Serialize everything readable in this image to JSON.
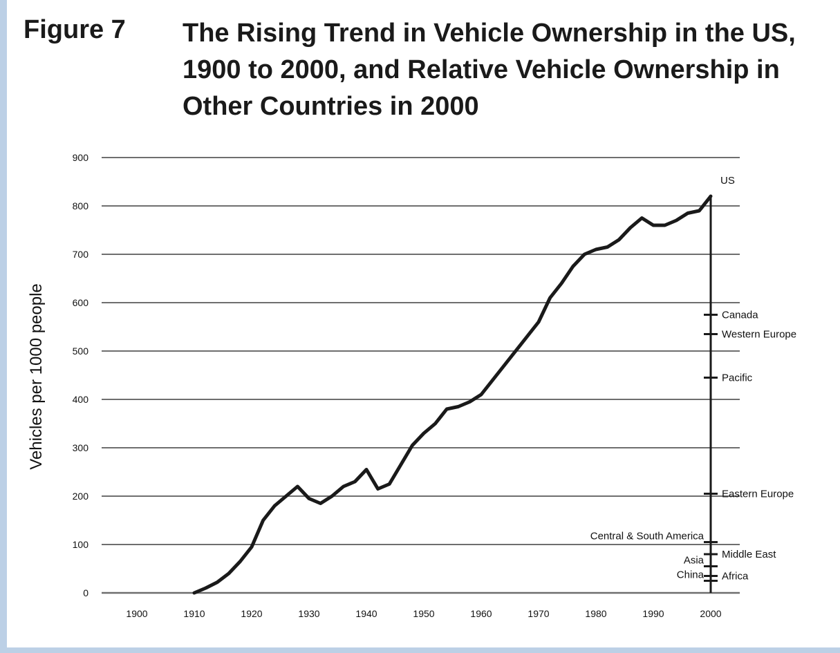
{
  "figure": {
    "label": "Figure 7",
    "title": "The Rising Trend in Vehicle Ownership in the US, 1900 to 2000, and Relative Vehicle Ownership in Other Countries in 2000"
  },
  "chart_data": {
    "type": "line",
    "title": "The Rising Trend in Vehicle Ownership in the US, 1900 to 2000, and Relative Vehicle Ownership in Other Countries in 2000",
    "ylabel": "Vehicles per 1000 people",
    "xlabel": "",
    "xlim": [
      1895,
      2005
    ],
    "ylim": [
      0,
      900
    ],
    "x_ticks": [
      1900,
      1910,
      1920,
      1930,
      1940,
      1950,
      1960,
      1970,
      1980,
      1990,
      2000
    ],
    "y_ticks": [
      0,
      100,
      200,
      300,
      400,
      500,
      600,
      700,
      800,
      900
    ],
    "grid": true,
    "series": [
      {
        "name": "US",
        "x": [
          1910,
          1912,
          1914,
          1916,
          1918,
          1920,
          1922,
          1924,
          1926,
          1928,
          1930,
          1932,
          1934,
          1936,
          1938,
          1940,
          1942,
          1944,
          1946,
          1948,
          1950,
          1952,
          1954,
          1956,
          1958,
          1960,
          1962,
          1964,
          1966,
          1968,
          1970,
          1972,
          1974,
          1976,
          1978,
          1980,
          1982,
          1984,
          1986,
          1988,
          1990,
          1992,
          1994,
          1996,
          1998,
          2000
        ],
        "y": [
          0,
          10,
          22,
          40,
          65,
          95,
          150,
          180,
          200,
          220,
          195,
          185,
          200,
          220,
          230,
          255,
          215,
          225,
          265,
          305,
          330,
          350,
          380,
          385,
          395,
          410,
          440,
          470,
          500,
          530,
          560,
          610,
          640,
          675,
          700,
          710,
          715,
          730,
          755,
          775,
          760,
          760,
          770,
          785,
          790,
          820
        ]
      }
    ],
    "reference_marks": [
      {
        "label": "US",
        "value": 820,
        "side": "right"
      },
      {
        "label": "Canada",
        "value": 575,
        "side": "right"
      },
      {
        "label": "Western Europe",
        "value": 535,
        "side": "right"
      },
      {
        "label": "Pacific",
        "value": 445,
        "side": "right"
      },
      {
        "label": "Eastern Europe",
        "value": 205,
        "side": "right"
      },
      {
        "label": "Central & South America",
        "value": 105,
        "side": "left"
      },
      {
        "label": "Middle East",
        "value": 80,
        "side": "right"
      },
      {
        "label": "Asia",
        "value": 55,
        "side": "left"
      },
      {
        "label": "Africa",
        "value": 35,
        "side": "right"
      },
      {
        "label": "China",
        "value": 25,
        "side": "left"
      }
    ],
    "colors": {
      "line": "#1a1a1a",
      "grid": "#6e6e6e"
    }
  }
}
